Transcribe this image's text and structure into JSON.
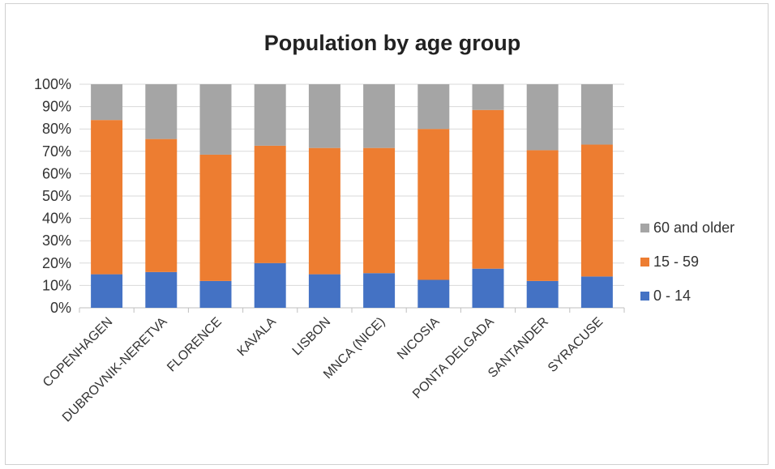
{
  "chart_data": {
    "type": "bar",
    "stacked": true,
    "percent_stacked": true,
    "title": "Population by age group",
    "categories": [
      "COPENHAGEN",
      "DUBROVNIK-NERETVA",
      "FLORENCE",
      "KAVALA",
      "LISBON",
      "MNCA (NICE)",
      "NICOSIA",
      "PONTA DELGADA",
      "SANTANDER",
      "SYRACUSE"
    ],
    "series": [
      {
        "name": "0 - 14",
        "color": "#4472C4",
        "values": [
          15,
          16,
          12,
          20,
          15,
          15.5,
          12.5,
          17.5,
          12,
          14
        ]
      },
      {
        "name": "15 - 59",
        "color": "#ED7D31",
        "values": [
          69,
          59.5,
          56.5,
          52.5,
          56.5,
          56,
          67.5,
          71,
          58.5,
          59
        ]
      },
      {
        "name": "60 and older",
        "color": "#A5A5A5",
        "values": [
          16,
          24.5,
          31.5,
          27.5,
          28.5,
          28.5,
          20,
          11.5,
          29.5,
          27
        ]
      }
    ],
    "ylim": [
      0,
      100
    ],
    "yticks": [
      "0%",
      "10%",
      "20%",
      "30%",
      "40%",
      "50%",
      "60%",
      "70%",
      "80%",
      "90%",
      "100%"
    ],
    "grid": true,
    "legend_position": "right",
    "legend_order": [
      "60 and older",
      "15 - 59",
      "0 - 14"
    ]
  }
}
